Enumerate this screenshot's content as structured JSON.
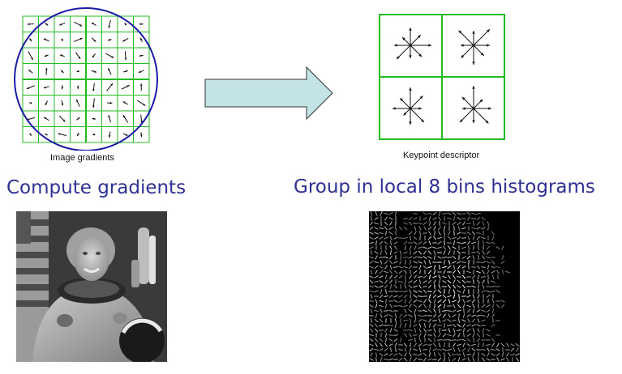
{
  "left_panel": {
    "figure_caption": "Image gradients",
    "heading": "Compute gradients"
  },
  "right_panel": {
    "figure_caption": "Keypoint descriptor",
    "heading": "Group in local 8 bins histograms"
  },
  "colors": {
    "grid": "#22bb22",
    "circle": "#1a1aa8",
    "arrow_fill": "#c4e3e5",
    "heading_text": "#2e3192"
  },
  "icons": {
    "transition": "right-arrow-icon"
  }
}
